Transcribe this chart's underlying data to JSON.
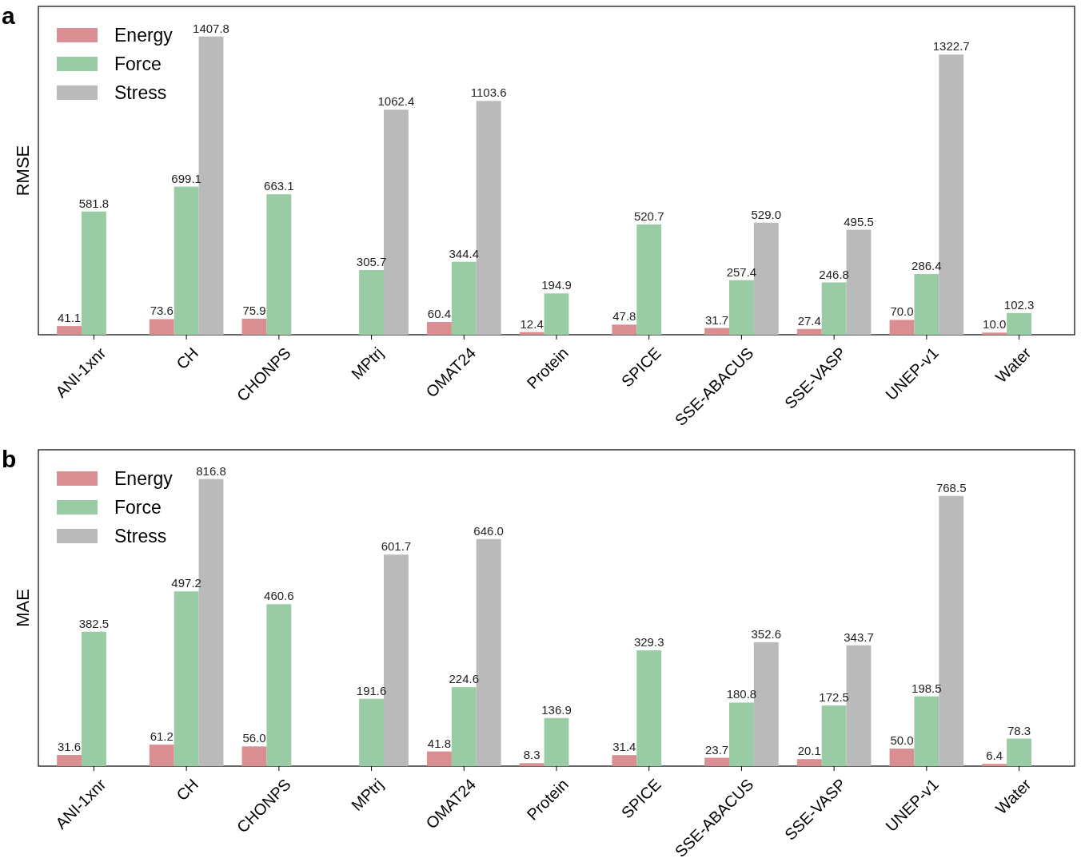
{
  "chart_data": [
    {
      "type": "bar",
      "title": "a",
      "ylabel": "RMSE",
      "categories": [
        "ANI-1xnr",
        "CH",
        "CHONPS",
        "MPtrj",
        "OMAT24",
        "Protein",
        "SPICE",
        "SSE-ABACUS",
        "SSE-VASP",
        "UNEP-v1",
        "Water"
      ],
      "ylim": [
        0,
        1550
      ],
      "tick_labels": "x",
      "legend": "top left",
      "series": [
        {
          "name": "Energy",
          "color": "#d98f92",
          "values": [
            41.1,
            73.6,
            75.9,
            null,
            60.4,
            12.4,
            47.8,
            31.7,
            27.4,
            70.0,
            10.0
          ],
          "value_labels": [
            "41.1",
            "73.6",
            "75.9",
            null,
            "60.4",
            "12.4",
            "47.8",
            "31.7",
            "27.4",
            "70.0",
            "10.0"
          ]
        },
        {
          "name": "Force",
          "color": "#99cba5",
          "values": [
            581.8,
            699.1,
            663.1,
            305.7,
            344.4,
            194.9,
            520.7,
            257.4,
            246.8,
            286.4,
            102.3
          ],
          "value_labels": [
            "581.8",
            "699.1",
            "663.1",
            "305.7",
            "344.4",
            "194.9",
            "520.7",
            "257.4",
            "246.8",
            "286.4",
            "102.3"
          ]
        },
        {
          "name": "Stress",
          "color": "#bababa",
          "values": [
            null,
            1407.8,
            null,
            1062.4,
            1103.6,
            null,
            null,
            529.0,
            495.5,
            1322.7,
            null
          ],
          "value_labels": [
            null,
            "1407.8",
            null,
            "1062.4",
            "1103.6",
            null,
            null,
            "529.0",
            "495.5",
            "1322.7",
            null
          ]
        }
      ]
    },
    {
      "type": "bar",
      "title": "b",
      "ylabel": "MAE",
      "categories": [
        "ANI-1xnr",
        "CH",
        "CHONPS",
        "MPtrj",
        "OMAT24",
        "Protein",
        "SPICE",
        "SSE-ABACUS",
        "SSE-VASP",
        "UNEP-v1",
        "Water"
      ],
      "ylim": [
        0,
        900
      ],
      "tick_labels": "x",
      "legend": "top left",
      "series": [
        {
          "name": "Energy",
          "color": "#d98f92",
          "values": [
            31.6,
            61.2,
            56.0,
            null,
            41.8,
            8.3,
            31.4,
            23.7,
            20.1,
            50.0,
            6.4
          ],
          "value_labels": [
            "31.6",
            "61.2",
            "56.0",
            null,
            "41.8",
            "8.3",
            "31.4",
            "23.7",
            "20.1",
            "50.0",
            "6.4"
          ]
        },
        {
          "name": "Force",
          "color": "#99cba5",
          "values": [
            382.5,
            497.2,
            460.6,
            191.6,
            224.6,
            136.9,
            329.3,
            180.8,
            172.5,
            198.5,
            78.3
          ],
          "value_labels": [
            "382.5",
            "497.2",
            "460.6",
            "191.6",
            "224.6",
            "136.9",
            "329.3",
            "180.8",
            "172.5",
            "198.5",
            "78.3"
          ]
        },
        {
          "name": "Stress",
          "color": "#bababa",
          "values": [
            null,
            816.8,
            null,
            601.7,
            646.0,
            null,
            null,
            352.6,
            343.7,
            768.5,
            null
          ],
          "value_labels": [
            null,
            "816.8",
            null,
            "601.7",
            "646.0",
            null,
            null,
            "352.6",
            "343.7",
            "768.5",
            null
          ]
        }
      ]
    }
  ]
}
